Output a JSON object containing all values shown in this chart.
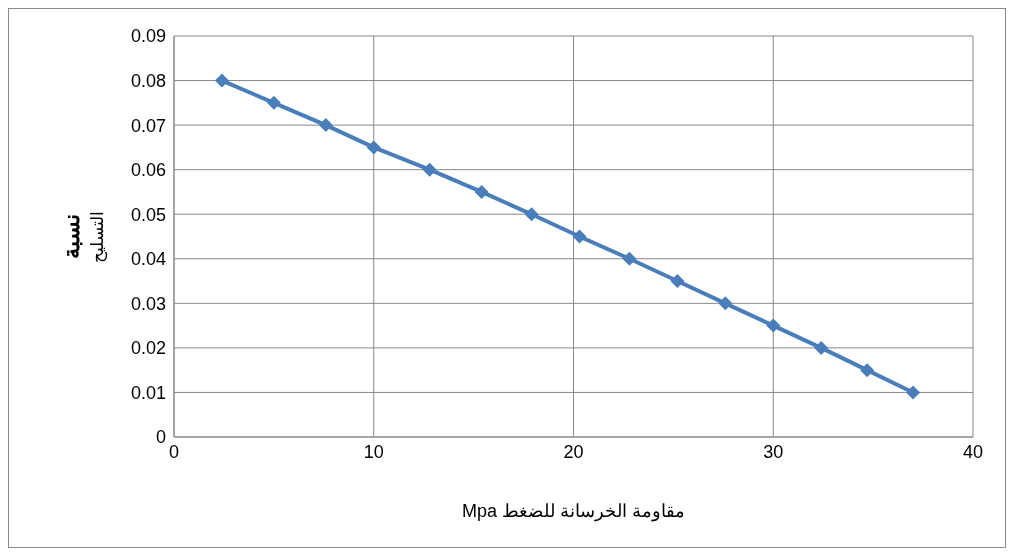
{
  "chart_data": {
    "type": "line",
    "xlabel": "مقاومة الخرسانة للضغط  Mpa",
    "ylabel": "نسبة التسليح",
    "x": [
      2.4,
      5.0,
      7.6,
      10.0,
      12.8,
      15.4,
      17.9,
      20.3,
      22.8,
      25.2,
      27.6,
      30.0,
      32.4,
      34.7,
      37.0
    ],
    "series": [
      {
        "color": "#4a7ebb",
        "values": [
          0.08,
          0.075,
          0.07,
          0.065,
          0.06,
          0.055,
          0.05,
          0.045,
          0.04,
          0.035,
          0.03,
          0.025,
          0.02,
          0.015,
          0.01
        ]
      }
    ],
    "xlim": [
      0,
      40
    ],
    "xticks": [
      0,
      10,
      20,
      30,
      40
    ],
    "ylim": [
      0,
      0.09
    ],
    "yticks": [
      0,
      0.01,
      0.02,
      0.03,
      0.04,
      0.05,
      0.06,
      0.07,
      0.08,
      0.09
    ],
    "grid": true,
    "marker": "diamond",
    "line_style": "solid",
    "legend": false
  }
}
